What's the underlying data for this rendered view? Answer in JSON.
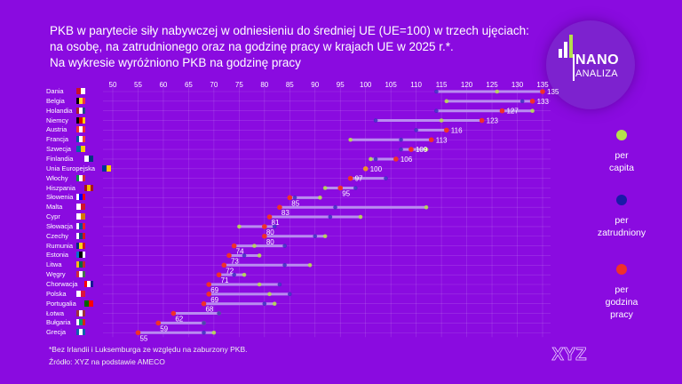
{
  "title": {
    "line1": "PKB w parytecie siły nabywczej w odniesieniu do średniej UE (UE=100) w trzech ujęciach:",
    "line2": "na osobę, na zatrudnionego oraz na godzinę pracy w krajach UE w 2025 r.*.",
    "line3": "Na wykresie wyróżniono PKB na godzinę pracy"
  },
  "logo": {
    "line1": "NANO",
    "line2": "ANALIZA"
  },
  "legend": [
    {
      "label1": "per",
      "label2": "capita",
      "color": "#b5e04a"
    },
    {
      "label1": "per",
      "label2": "zatrudniony",
      "color": "#1a1aa8"
    },
    {
      "label1": "per",
      "label2": "godzina pracy",
      "color": "#f0302a"
    }
  ],
  "footer": {
    "note": "*Bez Irlandii i Luksemburga ze względu na zaburzony PKB.",
    "source": "Źródło: XYZ na podstawie AMECO",
    "brand": "XYZ"
  },
  "chart_data": {
    "type": "dumbbell",
    "title": "PKB w parytecie siły nabywczej (UE=100), 2025",
    "xlim": [
      50,
      135
    ],
    "xticks": [
      50,
      55,
      60,
      65,
      70,
      75,
      80,
      85,
      90,
      95,
      100,
      105,
      110,
      115,
      120,
      125,
      130,
      135
    ],
    "grid": true,
    "legend_position": "right",
    "series_names": [
      "per capita",
      "per zatrudniony",
      "per godzina pracy"
    ],
    "rows": [
      {
        "country": "Dania",
        "flag": [
          "#c8102e",
          "#fff"
        ],
        "per_capita": 126,
        "per_employed": 114,
        "per_hour": 135
      },
      {
        "country": "Belgia",
        "flag": [
          "#000",
          "#fdda24",
          "#ef3340"
        ],
        "per_capita": 116,
        "per_employed": 131,
        "per_hour": 133
      },
      {
        "country": "Holandia",
        "flag": [
          "#ae1c28",
          "#fff",
          "#21468b"
        ],
        "per_capita": 133,
        "per_employed": 114,
        "per_hour": 127
      },
      {
        "country": "Niemcy",
        "flag": [
          "#000",
          "#dd0000",
          "#ffce00"
        ],
        "per_capita": 115,
        "per_employed": 102,
        "per_hour": 123
      },
      {
        "country": "Austria",
        "flag": [
          "#ed2939",
          "#fff",
          "#ed2939"
        ],
        "per_capita": 116,
        "per_employed": 110,
        "per_hour": 116
      },
      {
        "country": "Francja",
        "flag": [
          "#0055a4",
          "#fff",
          "#ef4135"
        ],
        "per_capita": 97,
        "per_employed": 107,
        "per_hour": 113
      },
      {
        "country": "Szwecja",
        "flag": [
          "#006aa7",
          "#fecc00"
        ],
        "per_capita": 112,
        "per_employed": 107,
        "per_hour": 109
      },
      {
        "country": "Finlandia",
        "flag": [
          "#fff",
          "#003580"
        ],
        "per_capita": 101,
        "per_employed": 102,
        "per_hour": 106
      },
      {
        "country": "Unia Europejska",
        "flag": [
          "#003399",
          "#ffcc00"
        ],
        "per_capita": 100,
        "per_employed": 100,
        "per_hour": 100
      },
      {
        "country": "Włochy",
        "flag": [
          "#009246",
          "#fff",
          "#ce2b37"
        ],
        "per_capita": 97,
        "per_employed": 104,
        "per_hour": 97
      },
      {
        "country": "Hiszpania",
        "flag": [
          "#aa151b",
          "#f1bf00",
          "#aa151b"
        ],
        "per_capita": 92,
        "per_employed": 98,
        "per_hour": 95
      },
      {
        "country": "Słowenia",
        "flag": [
          "#fff",
          "#0000ff",
          "#ff0000"
        ],
        "per_capita": 91,
        "per_employed": 86,
        "per_hour": 85
      },
      {
        "country": "Malta",
        "flag": [
          "#fff",
          "#cf142b"
        ],
        "per_capita": 112,
        "per_employed": 94,
        "per_hour": 83
      },
      {
        "country": "Cypr",
        "flag": [
          "#fff",
          "#d57800"
        ],
        "per_capita": 99,
        "per_employed": 93,
        "per_hour": 81
      },
      {
        "country": "Słowacja",
        "flag": [
          "#fff",
          "#0b4ea2",
          "#ee1c25"
        ],
        "per_capita": 75,
        "per_employed": 82,
        "per_hour": 80
      },
      {
        "country": "Czechy",
        "flag": [
          "#fff",
          "#11457e",
          "#d7141a"
        ],
        "per_capita": 92,
        "per_employed": 90,
        "per_hour": 80
      },
      {
        "country": "Rumunia",
        "flag": [
          "#002b7f",
          "#fcd116",
          "#ce1126"
        ],
        "per_capita": 78,
        "per_employed": 84,
        "per_hour": 74
      },
      {
        "country": "Estonia",
        "flag": [
          "#0072ce",
          "#000",
          "#fff"
        ],
        "per_capita": 79,
        "per_employed": 76,
        "per_hour": 73
      },
      {
        "country": "Litwa",
        "flag": [
          "#fdb913",
          "#006a44",
          "#c1272d"
        ],
        "per_capita": 89,
        "per_employed": 84,
        "per_hour": 72
      },
      {
        "country": "Węgry",
        "flag": [
          "#ce2939",
          "#fff",
          "#477050"
        ],
        "per_capita": 76,
        "per_employed": 74,
        "per_hour": 71
      },
      {
        "country": "Chorwacja",
        "flag": [
          "#ff0000",
          "#fff",
          "#171796"
        ],
        "per_capita": 79,
        "per_employed": 83,
        "per_hour": 69
      },
      {
        "country": "Polska",
        "flag": [
          "#fff",
          "#dc143c"
        ],
        "per_capita": 81,
        "per_employed": 85,
        "per_hour": 69
      },
      {
        "country": "Portugalia",
        "flag": [
          "#006600",
          "#ff0000"
        ],
        "per_capita": 82,
        "per_employed": 80,
        "per_hour": 68
      },
      {
        "country": "Łotwa",
        "flag": [
          "#9e3039",
          "#fff",
          "#9e3039"
        ],
        "per_capita": 71,
        "per_employed": 71,
        "per_hour": 62
      },
      {
        "country": "Bułgaria",
        "flag": [
          "#fff",
          "#00966e",
          "#d62612"
        ],
        "per_capita": 68,
        "per_employed": 68,
        "per_hour": 59
      },
      {
        "country": "Grecja",
        "flag": [
          "#0d5eaf",
          "#fff",
          "#0d5eaf"
        ],
        "per_capita": 70,
        "per_employed": 68,
        "per_hour": 55
      }
    ]
  }
}
